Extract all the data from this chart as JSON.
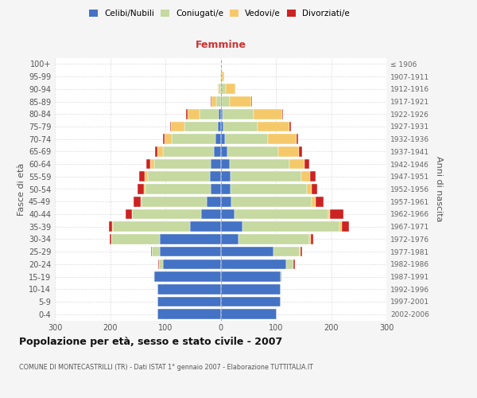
{
  "age_groups": [
    "0-4",
    "5-9",
    "10-14",
    "15-19",
    "20-24",
    "25-29",
    "30-34",
    "35-39",
    "40-44",
    "45-49",
    "50-54",
    "55-59",
    "60-64",
    "65-69",
    "70-74",
    "75-79",
    "80-84",
    "85-89",
    "90-94",
    "95-99",
    "100+"
  ],
  "birth_years": [
    "2002-2006",
    "1997-2001",
    "1992-1996",
    "1987-1991",
    "1982-1986",
    "1977-1981",
    "1972-1976",
    "1967-1971",
    "1962-1966",
    "1957-1961",
    "1952-1956",
    "1947-1951",
    "1942-1946",
    "1937-1941",
    "1932-1936",
    "1927-1931",
    "1922-1926",
    "1917-1921",
    "1912-1916",
    "1907-1911",
    "≤ 1906"
  ],
  "male": {
    "celibe": [
      115,
      115,
      115,
      120,
      105,
      110,
      110,
      55,
      35,
      25,
      18,
      20,
      18,
      12,
      10,
      5,
      3,
      0,
      0,
      0,
      0
    ],
    "coniugato": [
      0,
      0,
      0,
      2,
      7,
      14,
      88,
      140,
      125,
      118,
      118,
      112,
      102,
      92,
      78,
      60,
      35,
      8,
      3,
      1,
      0
    ],
    "vedovo": [
      0,
      0,
      0,
      0,
      0,
      0,
      0,
      2,
      0,
      2,
      3,
      5,
      7,
      10,
      14,
      25,
      22,
      8,
      2,
      0,
      0
    ],
    "divorziato": [
      0,
      0,
      0,
      0,
      1,
      2,
      3,
      5,
      12,
      12,
      12,
      10,
      8,
      5,
      3,
      2,
      3,
      2,
      0,
      0,
      0
    ]
  },
  "female": {
    "nubile": [
      102,
      108,
      108,
      108,
      118,
      95,
      32,
      40,
      25,
      20,
      18,
      18,
      16,
      12,
      8,
      5,
      4,
      2,
      1,
      0,
      0
    ],
    "coniugata": [
      0,
      0,
      0,
      3,
      14,
      48,
      128,
      175,
      170,
      145,
      138,
      128,
      108,
      92,
      78,
      62,
      55,
      15,
      8,
      2,
      0
    ],
    "vedova": [
      0,
      0,
      0,
      0,
      0,
      2,
      3,
      4,
      3,
      7,
      9,
      16,
      28,
      38,
      52,
      58,
      52,
      38,
      18,
      5,
      1
    ],
    "divorziata": [
      0,
      0,
      0,
      1,
      2,
      3,
      5,
      14,
      25,
      15,
      10,
      10,
      8,
      5,
      3,
      3,
      2,
      2,
      0,
      0,
      0
    ]
  },
  "colors": {
    "celibe": "#4472c4",
    "coniugato": "#c5d9a0",
    "vedovo": "#f5c96a",
    "divorziato": "#cc2222"
  },
  "xlim": 300,
  "title": "Popolazione per età, sesso e stato civile - 2007",
  "subtitle": "COMUNE DI MONTECASTRILLI (TR) - Dati ISTAT 1° gennaio 2007 - Elaborazione TUTTITALIA.IT",
  "ylabel_left": "Fasce di età",
  "ylabel_right": "Anni di nascita",
  "xlabel_right": "Femmine",
  "legend_labels": [
    "Celibi/Nubili",
    "Coniugati/e",
    "Vedovi/e",
    "Divorziati/e"
  ],
  "bg_color": "#f5f5f5",
  "plot_bg": "#ffffff",
  "grid_color": "#cccccc"
}
